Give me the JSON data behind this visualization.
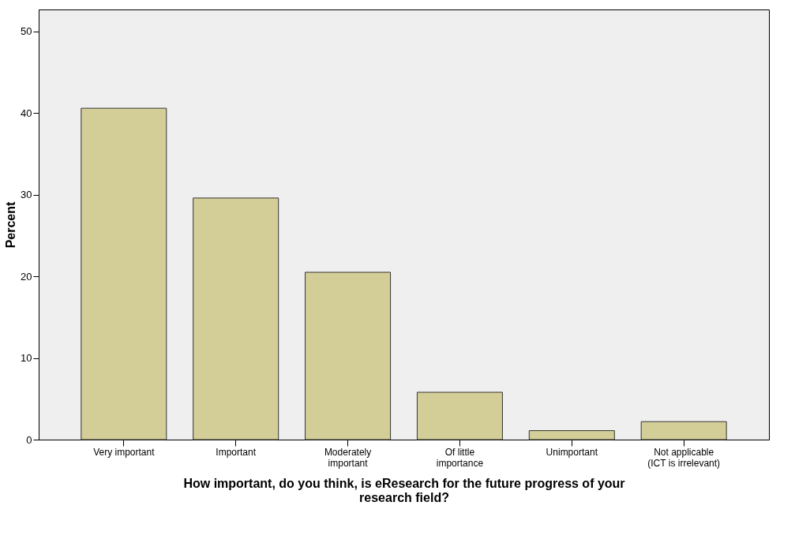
{
  "chart_data": {
    "type": "bar",
    "xlabel": "How important, do you think, is eResearch for the future progress of your research field?",
    "ylabel": "Percent",
    "categories": [
      "Very important",
      "Important",
      "Moderately important",
      "Of little importance",
      "Unimportant",
      "Not applicable (ICT is irrelevant)"
    ],
    "values": [
      40.6,
      29.6,
      20.5,
      5.8,
      1.1,
      2.2
    ],
    "color": "#d3ce97",
    "ylim": [
      0,
      52.7
    ],
    "yticks": [
      0,
      10,
      20,
      30,
      40,
      50
    ],
    "grid": false
  }
}
